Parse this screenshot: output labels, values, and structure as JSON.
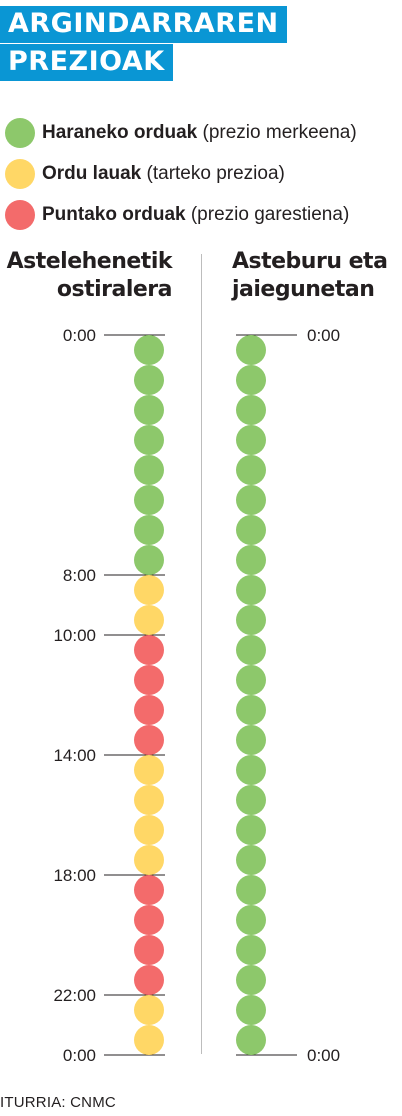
{
  "title": {
    "line1": "ARGINDARRAREN",
    "line2": "PREZIOAK"
  },
  "colors": {
    "brand": "#0a96d4",
    "haranekoa": "#8dc86b",
    "lauak": "#ffd766",
    "puntakoa": "#f36b6b",
    "tick": "#231f20"
  },
  "legend": [
    {
      "key": "haranekoa",
      "bold": "Haraneko orduak",
      "normal": " (prezio merkeena)"
    },
    {
      "key": "lauak",
      "bold": "Ordu lauak",
      "normal": " (tarteko prezioa)"
    },
    {
      "key": "puntakoa",
      "bold": "Puntako orduak",
      "normal": " (prezio garestiena)"
    }
  ],
  "columns": {
    "weekday": {
      "title_line1": "Astelehenetik",
      "title_line2": "ostiralera"
    },
    "weekend": {
      "title_line1": "Asteburu eta",
      "title_line2": "jaiegunetan"
    }
  },
  "chart_data": {
    "type": "timeline",
    "hours_per_day": 24,
    "weekday": {
      "ticks": [
        {
          "hour": 0,
          "label": "0:00"
        },
        {
          "hour": 8,
          "label": "8:00"
        },
        {
          "hour": 10,
          "label": "10:00"
        },
        {
          "hour": 14,
          "label": "14:00"
        },
        {
          "hour": 18,
          "label": "18:00"
        },
        {
          "hour": 22,
          "label": "22:00"
        },
        {
          "hour": 24,
          "label": "0:00"
        }
      ],
      "hours": [
        "haranekoa",
        "haranekoa",
        "haranekoa",
        "haranekoa",
        "haranekoa",
        "haranekoa",
        "haranekoa",
        "haranekoa",
        "lauak",
        "lauak",
        "puntakoa",
        "puntakoa",
        "puntakoa",
        "puntakoa",
        "lauak",
        "lauak",
        "lauak",
        "lauak",
        "puntakoa",
        "puntakoa",
        "puntakoa",
        "puntakoa",
        "lauak",
        "lauak"
      ]
    },
    "weekend": {
      "ticks": [
        {
          "hour": 0,
          "label": "0:00"
        },
        {
          "hour": 24,
          "label": "0:00"
        }
      ],
      "hours": [
        "haranekoa",
        "haranekoa",
        "haranekoa",
        "haranekoa",
        "haranekoa",
        "haranekoa",
        "haranekoa",
        "haranekoa",
        "haranekoa",
        "haranekoa",
        "haranekoa",
        "haranekoa",
        "haranekoa",
        "haranekoa",
        "haranekoa",
        "haranekoa",
        "haranekoa",
        "haranekoa",
        "haranekoa",
        "haranekoa",
        "haranekoa",
        "haranekoa",
        "haranekoa",
        "haranekoa"
      ]
    }
  },
  "source": "ITURRIA: CNMC"
}
